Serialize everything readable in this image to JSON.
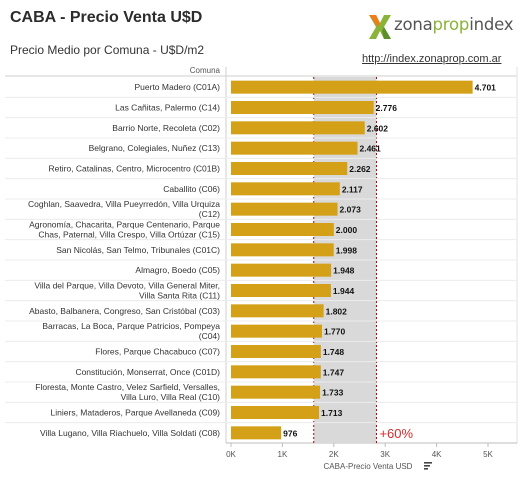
{
  "header": {
    "title": "CABA - Precio Venta U$D",
    "subtitle": "Precio Medio por Comuna - U$D/m2",
    "link": "http://index.zonaprop.com.ar",
    "logo_parts": [
      "zona",
      "prop",
      "index"
    ]
  },
  "chart_data": {
    "type": "bar",
    "orientation": "horizontal",
    "row_header": "Comuna",
    "categories": [
      [
        "Puerto Madero (C01A)"
      ],
      [
        "Las Cañitas, Palermo (C14)"
      ],
      [
        "Barrio Norte, Recoleta (C02)"
      ],
      [
        "Belgrano, Colegiales, Nuñez (C13)"
      ],
      [
        "Retiro, Catalinas, Centro, Microcentro (C01B)"
      ],
      [
        "Caballito (C06)"
      ],
      [
        "Coghlan, Saavedra, Villa Pueyrredón, Villa Urquiza",
        "(C12)"
      ],
      [
        "Agronomía, Chacarita, Parque Centenario, Parque",
        "Chas, Paternal, Villa Crespo, Villa Ortúzar (C15)"
      ],
      [
        "San Nicolás, San Telmo, Tribunales (C01C)"
      ],
      [
        "Almagro, Boedo (C05)"
      ],
      [
        "Villa del Parque, Villa Devoto, Villa General Miter,",
        "Villa Santa Rita (C11)"
      ],
      [
        "Abasto, Balbanera, Congreso, San Cristóbal (C03)"
      ],
      [
        "Barracas, La Boca, Parque Patricios, Pompeya",
        "(C04)"
      ],
      [
        "Flores, Parque Chacabuco (C07)"
      ],
      [
        "Constitución, Monserrat, Once (C01D)"
      ],
      [
        "Floresta, Monte Castro, Velez Sarfield, Versalles,",
        "Villa Luro, Villa Real (C10)"
      ],
      [
        "Liniers, Mataderos, Parque Avellaneda (C09)"
      ],
      [
        "Villa Lugano, Villa Riachuelo, Villa Soldati (C08)"
      ]
    ],
    "values": [
      4701,
      2776,
      2602,
      2461,
      2262,
      2117,
      2073,
      2000,
      1998,
      1948,
      1944,
      1802,
      1770,
      1748,
      1747,
      1733,
      1713,
      976
    ],
    "value_labels": [
      "4.701",
      "2.776",
      "2.602",
      "2.461",
      "2.262",
      "2.117",
      "2.073",
      "2.000",
      "1.998",
      "1.948",
      "1.944",
      "1.802",
      "1.770",
      "1.748",
      "1.747",
      "1.733",
      "1.713",
      "976"
    ],
    "xlabel": "CABA-Precio Venta USD",
    "xlim": [
      0,
      5400
    ],
    "xticks": [
      0,
      1000,
      2000,
      3000,
      4000,
      5000
    ],
    "xtick_labels": [
      "0K",
      "1K",
      "2K",
      "3K",
      "4K",
      "5K"
    ],
    "band": {
      "from": 1610,
      "to": 2830
    },
    "annotation": "+60%",
    "colors": {
      "bar": "#d4a017",
      "band": "#d9d9d9",
      "ref_line": "#b00000",
      "annotation": "#d62b2b"
    },
    "grid": false
  }
}
